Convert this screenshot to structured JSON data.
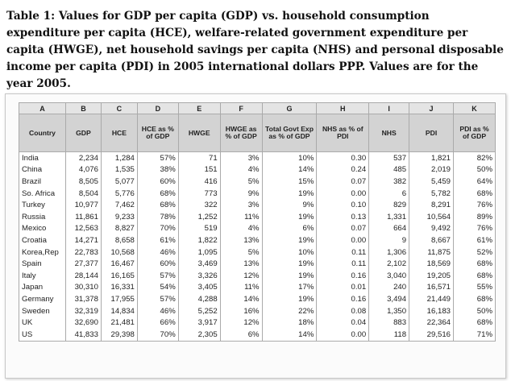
{
  "caption": "Table 1: Values for GDP per capita (GDP) vs. household consumption expenditure per capita (HCE), welfare-related government expenditure per capita (HWGE), net household savings per capita (NHS) and personal disposable income per capita (PDI) in 2005 international dollars PPP. Values are for the year 2005.",
  "table": {
    "letters": [
      "A",
      "B",
      "C",
      "D",
      "E",
      "F",
      "G",
      "H",
      "I",
      "J",
      "K"
    ],
    "headers": [
      "Country",
      "GDP",
      "HCE",
      "HCE as % of GDP",
      "HWGE",
      "HWGE as % of GDP",
      "Total Govt Exp as % of GDP",
      "NHS as % of PDI",
      "NHS",
      "PDI",
      "PDI as % of GDP"
    ],
    "rows": [
      [
        "India",
        "2,234",
        "1,284",
        "57%",
        "71",
        "3%",
        "10%",
        "0.30",
        "537",
        "1,821",
        "82%"
      ],
      [
        "China",
        "4,076",
        "1,535",
        "38%",
        "151",
        "4%",
        "14%",
        "0.24",
        "485",
        "2,019",
        "50%"
      ],
      [
        "Brazil",
        "8,505",
        "5,077",
        "60%",
        "416",
        "5%",
        "15%",
        "0.07",
        "382",
        "5,459",
        "64%"
      ],
      [
        "So. Africa",
        "8,504",
        "5,776",
        "68%",
        "773",
        "9%",
        "19%",
        "0.00",
        "6",
        "5,782",
        "68%"
      ],
      [
        "Turkey",
        "10,977",
        "7,462",
        "68%",
        "322",
        "3%",
        "9%",
        "0.10",
        "829",
        "8,291",
        "76%"
      ],
      [
        "Russia",
        "11,861",
        "9,233",
        "78%",
        "1,252",
        "11%",
        "19%",
        "0.13",
        "1,331",
        "10,564",
        "89%"
      ],
      [
        "Mexico",
        "12,563",
        "8,827",
        "70%",
        "519",
        "4%",
        "6%",
        "0.07",
        "664",
        "9,492",
        "76%"
      ],
      [
        "Croatia",
        "14,271",
        "8,658",
        "61%",
        "1,822",
        "13%",
        "19%",
        "0.00",
        "9",
        "8,667",
        "61%"
      ],
      [
        "Korea,Rep",
        "22,783",
        "10,568",
        "46%",
        "1,095",
        "5%",
        "10%",
        "0.11",
        "1,306",
        "11,875",
        "52%"
      ],
      [
        "Spain",
        "27,377",
        "16,467",
        "60%",
        "3,469",
        "13%",
        "19%",
        "0.11",
        "2,102",
        "18,569",
        "68%"
      ],
      [
        "Italy",
        "28,144",
        "16,165",
        "57%",
        "3,326",
        "12%",
        "19%",
        "0.16",
        "3,040",
        "19,205",
        "68%"
      ],
      [
        "Japan",
        "30,310",
        "16,331",
        "54%",
        "3,405",
        "11%",
        "17%",
        "0.01",
        "240",
        "16,571",
        "55%"
      ],
      [
        "Germany",
        "31,378",
        "17,955",
        "57%",
        "4,288",
        "14%",
        "19%",
        "0.16",
        "3,494",
        "21,449",
        "68%"
      ],
      [
        "Sweden",
        "32,319",
        "14,834",
        "46%",
        "5,252",
        "16%",
        "22%",
        "0.08",
        "1,350",
        "16,183",
        "50%"
      ],
      [
        "UK",
        "32,690",
        "21,481",
        "66%",
        "3,917",
        "12%",
        "18%",
        "0.04",
        "883",
        "22,364",
        "68%"
      ],
      [
        "US",
        "41,833",
        "29,398",
        "70%",
        "2,305",
        "6%",
        "14%",
        "0.00",
        "118",
        "29,516",
        "71%"
      ]
    ]
  }
}
